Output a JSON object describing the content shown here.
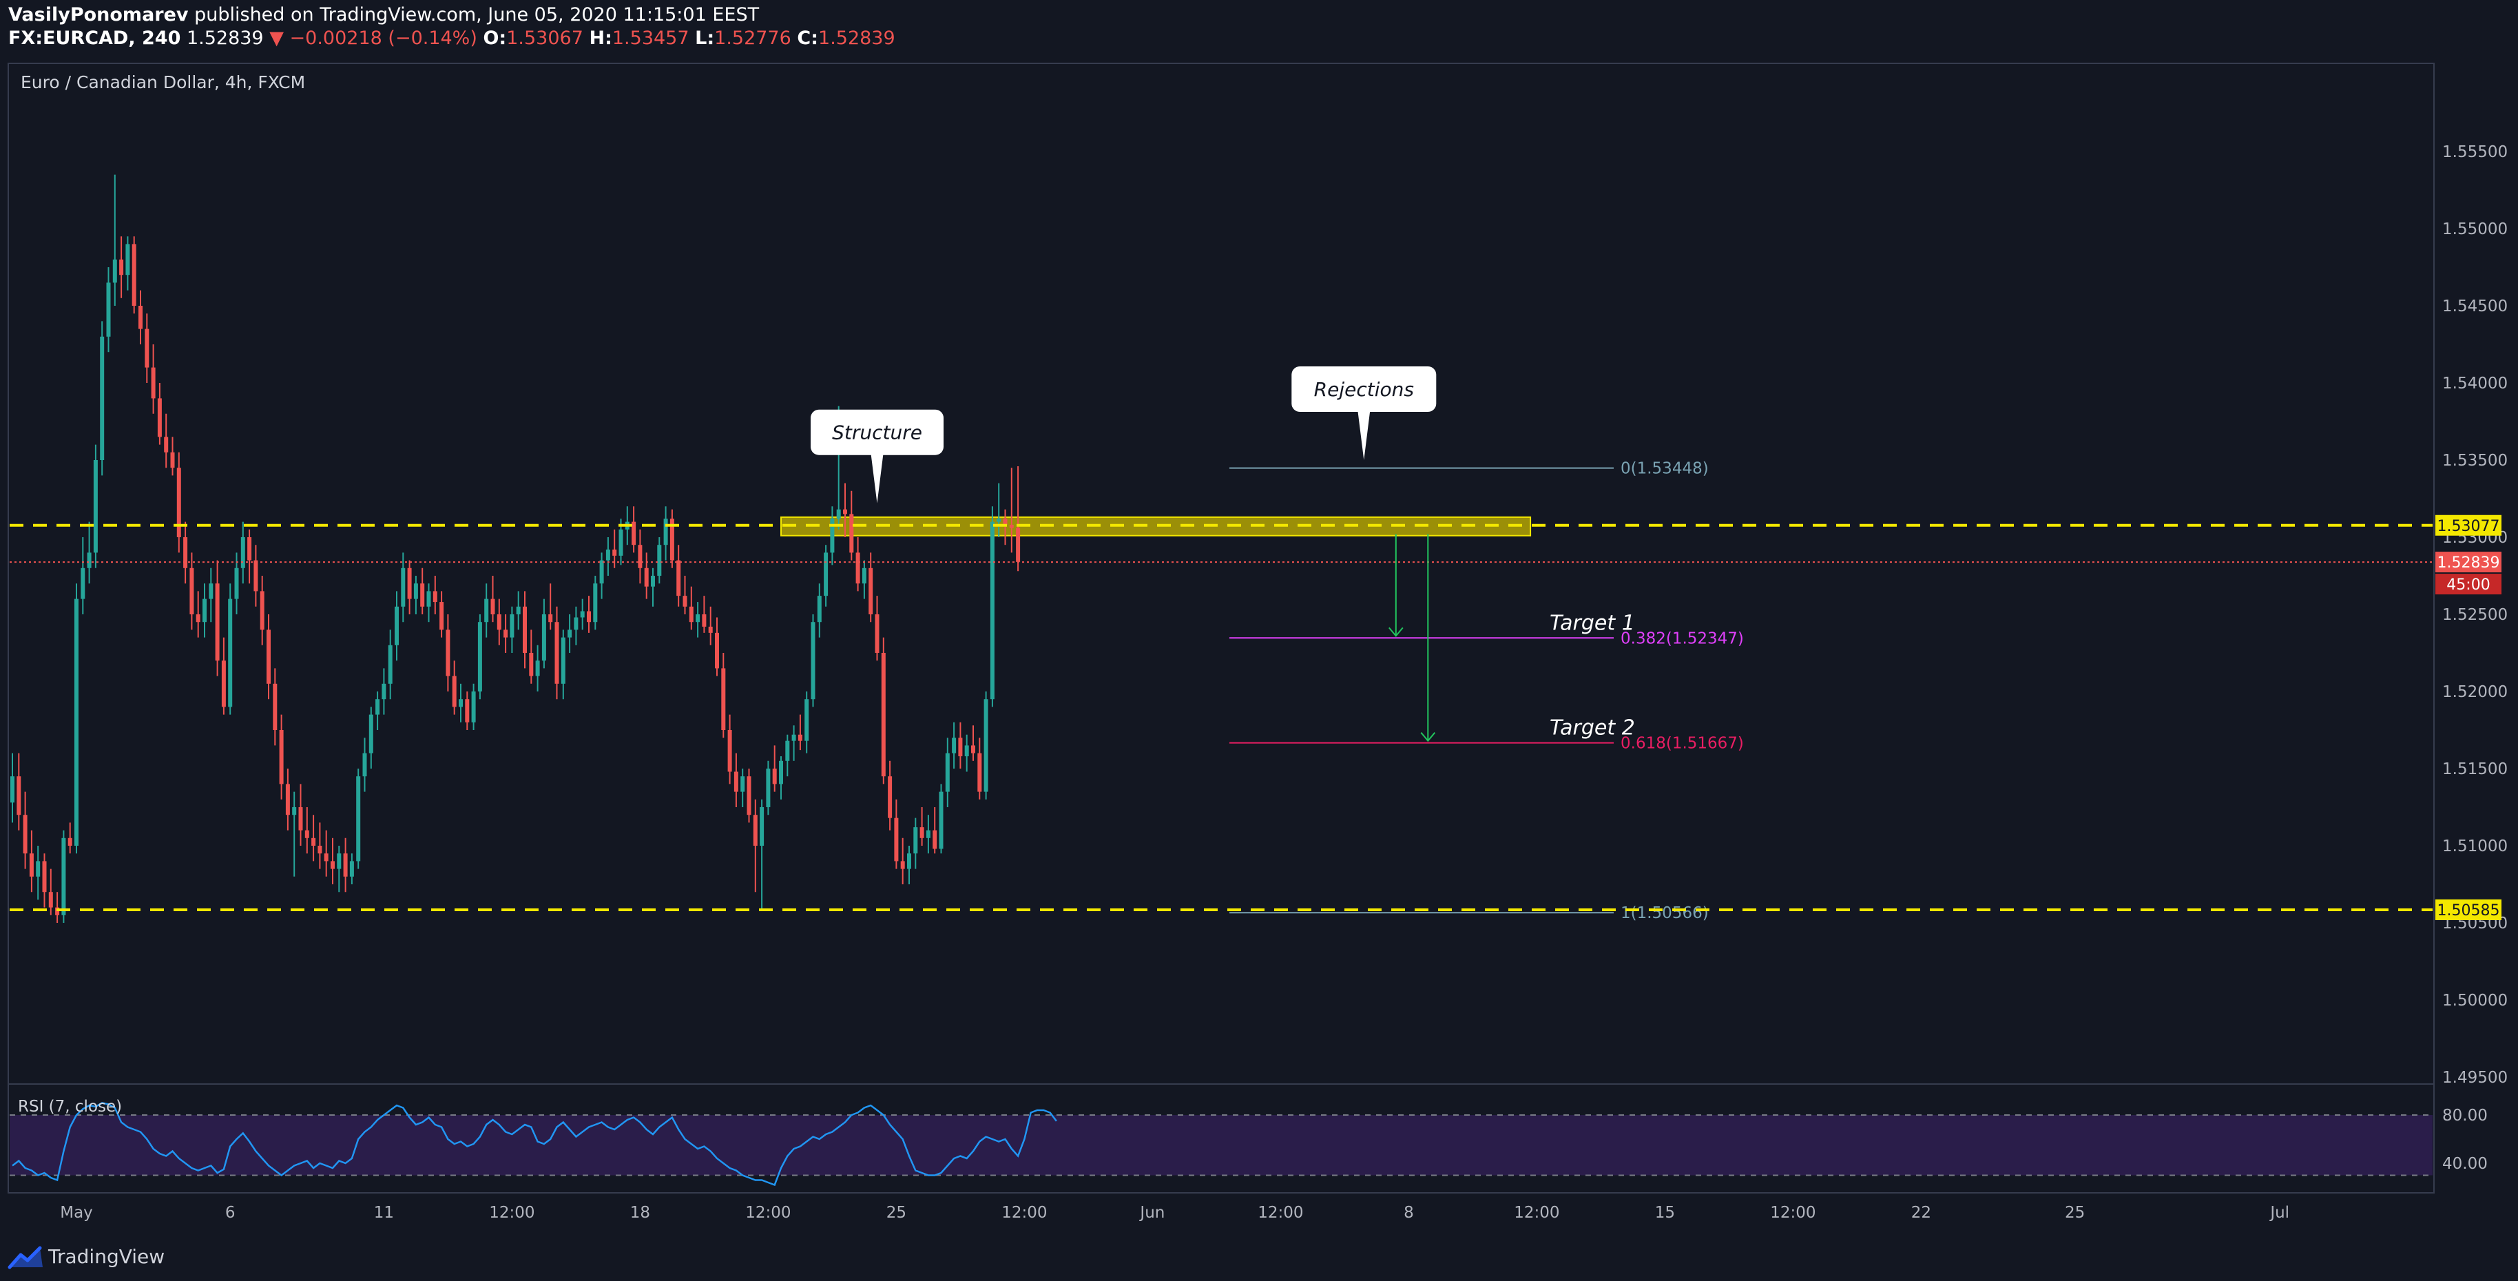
{
  "header": {
    "author": "VasilyPonomarev",
    "published": "published on TradingView.com, June 05, 2020 11:15:01 EEST",
    "symbol": "FX:EURCAD, 240",
    "last": "1.52839",
    "change": "▼ −0.00218 (−0.14%)",
    "o_label": "O:",
    "o_value": "1.53067",
    "h_label": "H:",
    "h_value": "1.53457",
    "l_label": "L:",
    "l_value": "1.52776",
    "c_label": "C:",
    "c_value": "1.52839"
  },
  "footer": {
    "brand": "TradingView"
  },
  "colors": {
    "background": "#131722",
    "bull": "#26a69a",
    "bear": "#ef5350",
    "level": "#f4e800",
    "zone": "#c9b800",
    "fib0": "#7aa3b3",
    "fib382": "#e040fb",
    "fib618": "#e91e63",
    "arrow": "#22c55e",
    "rsi_line": "#2196f3",
    "rsi_band": "#2a1d4a"
  },
  "chart_data": {
    "type": "candlestick",
    "title": "Euro / Canadian Dollar, 4h, FXCM",
    "timeframe": "4h",
    "ylim": [
      1.495,
      1.56
    ],
    "y_ticks": [
      "1.55500",
      "1.55000",
      "1.54500",
      "1.54000",
      "1.53500",
      "1.53000",
      "1.52500",
      "1.52000",
      "1.51500",
      "1.51000",
      "1.50500",
      "1.50000",
      "1.49500"
    ],
    "x_ticks": [
      {
        "label": "May",
        "bar": 10
      },
      {
        "label": "6",
        "bar": 34
      },
      {
        "label": "11",
        "bar": 58
      },
      {
        "label": "12:00",
        "bar": 78
      },
      {
        "label": "18",
        "bar": 98
      },
      {
        "label": "12:00",
        "bar": 118
      },
      {
        "label": "25",
        "bar": 138
      },
      {
        "label": "12:00",
        "bar": 158
      },
      {
        "label": "Jun",
        "bar": 178
      },
      {
        "label": "12:00",
        "bar": 198
      },
      {
        "label": "8",
        "bar": 218
      },
      {
        "label": "12:00",
        "bar": 238
      },
      {
        "label": "15",
        "bar": 258
      },
      {
        "label": "12:00",
        "bar": 278
      },
      {
        "label": "22",
        "bar": 298
      },
      {
        "label": "25",
        "bar": 322
      },
      {
        "label": "Jul",
        "bar": 354
      }
    ],
    "candles": [
      [
        1.5128,
        1.516,
        1.5115,
        1.5145
      ],
      [
        1.5145,
        1.516,
        1.511,
        1.512
      ],
      [
        1.512,
        1.5135,
        1.5085,
        1.5095
      ],
      [
        1.5095,
        1.511,
        1.507,
        1.508
      ],
      [
        1.508,
        1.51,
        1.5065,
        1.509
      ],
      [
        1.509,
        1.5095,
        1.506,
        1.507
      ],
      [
        1.507,
        1.5085,
        1.5055,
        1.506
      ],
      [
        1.506,
        1.507,
        1.505,
        1.5055
      ],
      [
        1.5055,
        1.511,
        1.505,
        1.5105
      ],
      [
        1.5105,
        1.5115,
        1.5095,
        1.51
      ],
      [
        1.51,
        1.527,
        1.5095,
        1.526
      ],
      [
        1.526,
        1.53,
        1.525,
        1.528
      ],
      [
        1.528,
        1.531,
        1.527,
        1.529
      ],
      [
        1.529,
        1.536,
        1.528,
        1.535
      ],
      [
        1.535,
        1.544,
        1.534,
        1.543
      ],
      [
        1.543,
        1.5475,
        1.542,
        1.5465
      ],
      [
        1.5465,
        1.5535,
        1.545,
        1.548
      ],
      [
        1.548,
        1.5495,
        1.5455,
        1.547
      ],
      [
        1.547,
        1.5495,
        1.546,
        1.549
      ],
      [
        1.549,
        1.5495,
        1.5445,
        1.545
      ],
      [
        1.545,
        1.546,
        1.5425,
        1.5435
      ],
      [
        1.5435,
        1.5445,
        1.54,
        1.541
      ],
      [
        1.541,
        1.5425,
        1.538,
        1.539
      ],
      [
        1.539,
        1.54,
        1.536,
        1.5365
      ],
      [
        1.5365,
        1.538,
        1.5345,
        1.5355
      ],
      [
        1.5355,
        1.5365,
        1.534,
        1.5345
      ],
      [
        1.5345,
        1.5355,
        1.529,
        1.53
      ],
      [
        1.53,
        1.531,
        1.527,
        1.528
      ],
      [
        1.528,
        1.529,
        1.524,
        1.525
      ],
      [
        1.525,
        1.5265,
        1.5235,
        1.5245
      ],
      [
        1.5245,
        1.527,
        1.5235,
        1.526
      ],
      [
        1.526,
        1.528,
        1.5245,
        1.527
      ],
      [
        1.527,
        1.5285,
        1.521,
        1.522
      ],
      [
        1.522,
        1.5235,
        1.5185,
        1.519
      ],
      [
        1.519,
        1.527,
        1.5185,
        1.526
      ],
      [
        1.526,
        1.529,
        1.525,
        1.528
      ],
      [
        1.528,
        1.531,
        1.527,
        1.53
      ],
      [
        1.53,
        1.5305,
        1.527,
        1.5285
      ],
      [
        1.5285,
        1.5295,
        1.5255,
        1.5265
      ],
      [
        1.5265,
        1.5275,
        1.523,
        1.524
      ],
      [
        1.524,
        1.525,
        1.5195,
        1.5205
      ],
      [
        1.5205,
        1.5215,
        1.5165,
        1.5175
      ],
      [
        1.5175,
        1.5185,
        1.513,
        1.514
      ],
      [
        1.514,
        1.515,
        1.511,
        1.512
      ],
      [
        1.512,
        1.5135,
        1.508,
        1.5125
      ],
      [
        1.5125,
        1.514,
        1.51,
        1.511
      ],
      [
        1.511,
        1.5125,
        1.5095,
        1.5105
      ],
      [
        1.5105,
        1.512,
        1.509,
        1.51
      ],
      [
        1.51,
        1.5115,
        1.5085,
        1.5095
      ],
      [
        1.5095,
        1.511,
        1.508,
        1.509
      ],
      [
        1.509,
        1.5105,
        1.5075,
        1.5085
      ],
      [
        1.5085,
        1.51,
        1.507,
        1.5095
      ],
      [
        1.5095,
        1.5105,
        1.507,
        1.508
      ],
      [
        1.508,
        1.5095,
        1.5075,
        1.509
      ],
      [
        1.509,
        1.515,
        1.5085,
        1.5145
      ],
      [
        1.5145,
        1.517,
        1.5135,
        1.516
      ],
      [
        1.516,
        1.519,
        1.515,
        1.5185
      ],
      [
        1.5185,
        1.52,
        1.5175,
        1.5195
      ],
      [
        1.5195,
        1.5215,
        1.5185,
        1.5205
      ],
      [
        1.5205,
        1.524,
        1.5195,
        1.523
      ],
      [
        1.523,
        1.5265,
        1.522,
        1.5255
      ],
      [
        1.5255,
        1.529,
        1.5245,
        1.528
      ],
      [
        1.528,
        1.5285,
        1.525,
        1.526
      ],
      [
        1.526,
        1.5275,
        1.525,
        1.527
      ],
      [
        1.527,
        1.528,
        1.525,
        1.5255
      ],
      [
        1.5255,
        1.527,
        1.5245,
        1.5265
      ],
      [
        1.5265,
        1.5275,
        1.525,
        1.5258
      ],
      [
        1.5258,
        1.5265,
        1.5235,
        1.524
      ],
      [
        1.524,
        1.525,
        1.52,
        1.521
      ],
      [
        1.521,
        1.522,
        1.5185,
        1.519
      ],
      [
        1.519,
        1.5205,
        1.518,
        1.5195
      ],
      [
        1.5195,
        1.52,
        1.5175,
        1.518
      ],
      [
        1.518,
        1.5205,
        1.5175,
        1.52
      ],
      [
        1.52,
        1.525,
        1.5195,
        1.5245
      ],
      [
        1.5245,
        1.527,
        1.5235,
        1.526
      ],
      [
        1.526,
        1.5275,
        1.5245,
        1.525
      ],
      [
        1.525,
        1.526,
        1.523,
        1.524
      ],
      [
        1.524,
        1.525,
        1.5225,
        1.5235
      ],
      [
        1.5235,
        1.5255,
        1.5225,
        1.525
      ],
      [
        1.525,
        1.5265,
        1.524,
        1.5255
      ],
      [
        1.5255,
        1.5265,
        1.5215,
        1.5225
      ],
      [
        1.5225,
        1.524,
        1.5205,
        1.521
      ],
      [
        1.521,
        1.523,
        1.52,
        1.522
      ],
      [
        1.522,
        1.526,
        1.5215,
        1.525
      ],
      [
        1.525,
        1.527,
        1.524,
        1.5245
      ],
      [
        1.5245,
        1.5255,
        1.5195,
        1.5205
      ],
      [
        1.5205,
        1.524,
        1.5195,
        1.5235
      ],
      [
        1.5235,
        1.525,
        1.5225,
        1.524
      ],
      [
        1.524,
        1.5255,
        1.523,
        1.5248
      ],
      [
        1.5248,
        1.526,
        1.524,
        1.5252
      ],
      [
        1.5252,
        1.5262,
        1.5238,
        1.5245
      ],
      [
        1.5245,
        1.5275,
        1.524,
        1.527
      ],
      [
        1.527,
        1.529,
        1.526,
        1.5285
      ],
      [
        1.5285,
        1.53,
        1.5275,
        1.5292
      ],
      [
        1.5292,
        1.5305,
        1.528,
        1.5288
      ],
      [
        1.5288,
        1.5312,
        1.5282,
        1.5305
      ],
      [
        1.5305,
        1.532,
        1.5295,
        1.531
      ],
      [
        1.531,
        1.532,
        1.529,
        1.5295
      ],
      [
        1.5295,
        1.5305,
        1.527,
        1.528
      ],
      [
        1.528,
        1.529,
        1.526,
        1.5268
      ],
      [
        1.5268,
        1.528,
        1.5255,
        1.5275
      ],
      [
        1.5275,
        1.53,
        1.527,
        1.5295
      ],
      [
        1.5295,
        1.532,
        1.5285,
        1.5312
      ],
      [
        1.5312,
        1.5318,
        1.528,
        1.5285
      ],
      [
        1.5285,
        1.5295,
        1.5255,
        1.5262
      ],
      [
        1.5262,
        1.5275,
        1.525,
        1.5255
      ],
      [
        1.5255,
        1.5268,
        1.524,
        1.5245
      ],
      [
        1.5245,
        1.5258,
        1.5235,
        1.525
      ],
      [
        1.525,
        1.5262,
        1.5238,
        1.5242
      ],
      [
        1.5242,
        1.5255,
        1.523,
        1.5238
      ],
      [
        1.5238,
        1.5248,
        1.521,
        1.5215
      ],
      [
        1.5215,
        1.5225,
        1.517,
        1.5175
      ],
      [
        1.5175,
        1.5185,
        1.514,
        1.5148
      ],
      [
        1.5148,
        1.516,
        1.5125,
        1.5135
      ],
      [
        1.5135,
        1.515,
        1.5125,
        1.5145
      ],
      [
        1.5145,
        1.515,
        1.5115,
        1.512
      ],
      [
        1.512,
        1.513,
        1.507,
        1.51
      ],
      [
        1.51,
        1.513,
        1.5058,
        1.5125
      ],
      [
        1.5125,
        1.5155,
        1.512,
        1.515
      ],
      [
        1.515,
        1.5165,
        1.5135,
        1.514
      ],
      [
        1.514,
        1.5158,
        1.513,
        1.5155
      ],
      [
        1.5155,
        1.5172,
        1.5145,
        1.5168
      ],
      [
        1.5168,
        1.5178,
        1.5155,
        1.5172
      ],
      [
        1.5172,
        1.5185,
        1.5162,
        1.5168
      ],
      [
        1.5168,
        1.52,
        1.516,
        1.5195
      ],
      [
        1.5195,
        1.525,
        1.519,
        1.5245
      ],
      [
        1.5245,
        1.527,
        1.5235,
        1.5262
      ],
      [
        1.5262,
        1.5295,
        1.5255,
        1.529
      ],
      [
        1.529,
        1.532,
        1.5282,
        1.5312
      ],
      [
        1.5312,
        1.5385,
        1.5305,
        1.5318
      ],
      [
        1.5318,
        1.5335,
        1.53,
        1.5315
      ],
      [
        1.5315,
        1.533,
        1.5285,
        1.529
      ],
      [
        1.529,
        1.53,
        1.5265,
        1.527
      ],
      [
        1.527,
        1.5285,
        1.526,
        1.528
      ],
      [
        1.528,
        1.529,
        1.5245,
        1.525
      ],
      [
        1.525,
        1.5262,
        1.522,
        1.5225
      ],
      [
        1.5225,
        1.5235,
        1.514,
        1.5145
      ],
      [
        1.5145,
        1.5155,
        1.511,
        1.5118
      ],
      [
        1.5118,
        1.513,
        1.5085,
        1.509
      ],
      [
        1.509,
        1.5105,
        1.5075,
        1.5085
      ],
      [
        1.5085,
        1.51,
        1.5075,
        1.5095
      ],
      [
        1.5095,
        1.5118,
        1.5085,
        1.5112
      ],
      [
        1.5112,
        1.5125,
        1.51,
        1.5105
      ],
      [
        1.5105,
        1.512,
        1.5095,
        1.511
      ],
      [
        1.511,
        1.5125,
        1.5095,
        1.5098
      ],
      [
        1.5098,
        1.514,
        1.5095,
        1.5135
      ],
      [
        1.5135,
        1.517,
        1.5125,
        1.516
      ],
      [
        1.516,
        1.518,
        1.515,
        1.517
      ],
      [
        1.517,
        1.518,
        1.515,
        1.5158
      ],
      [
        1.5158,
        1.5172,
        1.5148,
        1.5165
      ],
      [
        1.5165,
        1.5178,
        1.5155,
        1.516
      ],
      [
        1.516,
        1.517,
        1.513,
        1.5135
      ],
      [
        1.5135,
        1.52,
        1.513,
        1.5195
      ],
      [
        1.5195,
        1.532,
        1.519,
        1.531
      ],
      [
        1.531,
        1.5335,
        1.53,
        1.5312
      ],
      [
        1.5312,
        1.5318,
        1.5295,
        1.5308
      ],
      [
        1.5308,
        1.5345,
        1.529,
        1.5306
      ],
      [
        1.5306,
        1.5346,
        1.5278,
        1.5284
      ]
    ],
    "levels": [
      {
        "value": 1.53077,
        "label": "1.53077",
        "style": "dashed"
      },
      {
        "value": 1.50585,
        "label": "1.50585",
        "style": "dashed"
      }
    ],
    "last_price": {
      "value": 1.52839,
      "label": "1.52839",
      "countdown": "45:00"
    },
    "resistance_zone": {
      "from_bar": 120,
      "to_bar": 237,
      "low": 1.5301,
      "high": 1.5313
    },
    "fibonacci": {
      "from_bar": 190,
      "to_bar": 250,
      "levels": [
        {
          "ratio": "0",
          "value": 1.53448,
          "label": "0(1.53448)"
        },
        {
          "ratio": "0.382",
          "value": 1.52347,
          "label": "0.382(1.52347)"
        },
        {
          "ratio": "0.618",
          "value": 1.51667,
          "label": "0.618(1.51667)"
        },
        {
          "ratio": "1",
          "value": 1.50566,
          "label": "1(1.50566)"
        }
      ]
    },
    "targets": [
      {
        "label": "Target 1",
        "value": 1.52347
      },
      {
        "label": "Target 2",
        "value": 1.51667
      }
    ],
    "callouts": [
      {
        "text": "Structure",
        "bar": 135,
        "value": 1.5322
      },
      {
        "text": "Rejections",
        "bar": 211,
        "value": 1.535
      }
    ],
    "arrows": [
      {
        "bar": 216,
        "from": 1.5302,
        "to": 1.5236
      },
      {
        "bar": 221,
        "from": 1.5302,
        "to": 1.5168
      }
    ],
    "rsi": {
      "label": "RSI (7, close)",
      "ylim": [
        20,
        100
      ],
      "upper": 80,
      "lower": 30,
      "ticks": [
        "80.00",
        "40.00"
      ],
      "values": [
        38,
        42,
        36,
        34,
        30,
        32,
        28,
        26,
        50,
        70,
        80,
        85,
        88,
        87,
        90,
        89,
        86,
        74,
        70,
        68,
        66,
        60,
        52,
        48,
        46,
        50,
        44,
        40,
        36,
        34,
        36,
        38,
        32,
        35,
        54,
        60,
        65,
        58,
        50,
        44,
        38,
        34,
        30,
        34,
        38,
        40,
        42,
        36,
        40,
        38,
        36,
        42,
        40,
        44,
        60,
        66,
        70,
        76,
        80,
        84,
        88,
        86,
        78,
        72,
        74,
        78,
        72,
        70,
        60,
        56,
        58,
        54,
        56,
        62,
        72,
        76,
        72,
        66,
        64,
        68,
        72,
        70,
        58,
        56,
        60,
        70,
        74,
        68,
        62,
        66,
        70,
        72,
        74,
        70,
        68,
        72,
        76,
        78,
        74,
        68,
        64,
        70,
        74,
        78,
        68,
        60,
        56,
        52,
        54,
        50,
        44,
        40,
        36,
        34,
        30,
        28,
        26,
        26,
        24,
        22,
        36,
        46,
        52,
        54,
        58,
        62,
        60,
        64,
        66,
        70,
        74,
        80,
        82,
        86,
        88,
        84,
        80,
        72,
        66,
        60,
        46,
        34,
        32,
        30,
        30,
        32,
        38,
        44,
        46,
        44,
        50,
        58,
        62,
        60,
        58,
        60,
        52,
        46,
        60,
        82,
        84,
        84,
        82,
        75
      ]
    }
  }
}
